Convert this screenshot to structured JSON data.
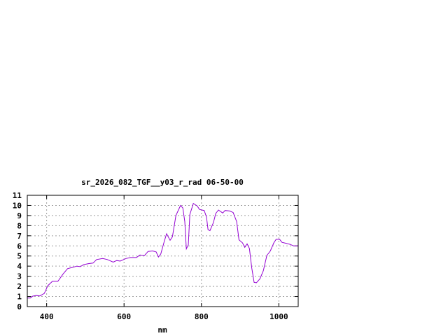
{
  "chart_data": {
    "type": "line",
    "title": "sr_2026_082_TGF__y03_r_rad 06-50-00",
    "xlabel": "nm",
    "ylabel": "",
    "xlim": [
      350,
      1050
    ],
    "ylim": [
      0,
      11
    ],
    "xticks": [
      400,
      600,
      800,
      1000
    ],
    "yticks": [
      0,
      1,
      2,
      3,
      4,
      5,
      6,
      7,
      8,
      9,
      10,
      11
    ],
    "grid": true,
    "legend": "none",
    "series": [
      {
        "color": "#9400d3",
        "x": [
          350,
          358,
          364,
          373,
          382,
          394,
          403,
          415,
          429,
          442,
          454,
          469,
          478,
          487,
          496,
          508,
          520,
          529,
          545,
          557,
          572,
          581,
          590,
          605,
          617,
          632,
          641,
          653,
          662,
          674,
          683,
          689,
          695,
          704,
          710,
          719,
          725,
          734,
          746,
          752,
          757,
          761,
          766,
          770,
          779,
          789,
          795,
          801,
          807,
          813,
          817,
          822,
          831,
          837,
          844,
          855,
          861,
          873,
          882,
          891,
          897,
          906,
          912,
          918,
          924,
          930,
          936,
          942,
          951,
          960,
          969,
          978,
          987,
          993,
          1002,
          1008,
          1020,
          1029,
          1038,
          1050
        ],
        "y": [
          0.85,
          0.85,
          1.03,
          1.1,
          1.05,
          1.3,
          2.07,
          2.5,
          2.5,
          3.2,
          3.75,
          3.9,
          4.0,
          3.95,
          4.15,
          4.25,
          4.3,
          4.65,
          4.75,
          4.65,
          4.4,
          4.55,
          4.5,
          4.75,
          4.85,
          4.85,
          5.1,
          5.05,
          5.45,
          5.5,
          5.4,
          4.9,
          5.2,
          6.45,
          7.2,
          6.55,
          6.9,
          9.0,
          10.0,
          9.75,
          8.4,
          5.7,
          6.1,
          9.1,
          10.2,
          9.95,
          9.6,
          9.55,
          9.5,
          8.85,
          7.6,
          7.5,
          8.3,
          9.2,
          9.55,
          9.25,
          9.5,
          9.45,
          9.3,
          8.4,
          6.6,
          6.3,
          5.85,
          6.2,
          5.75,
          3.8,
          2.4,
          2.35,
          2.75,
          3.55,
          5.05,
          5.5,
          6.3,
          6.65,
          6.65,
          6.35,
          6.25,
          6.15,
          6.0,
          6.0
        ]
      }
    ]
  }
}
